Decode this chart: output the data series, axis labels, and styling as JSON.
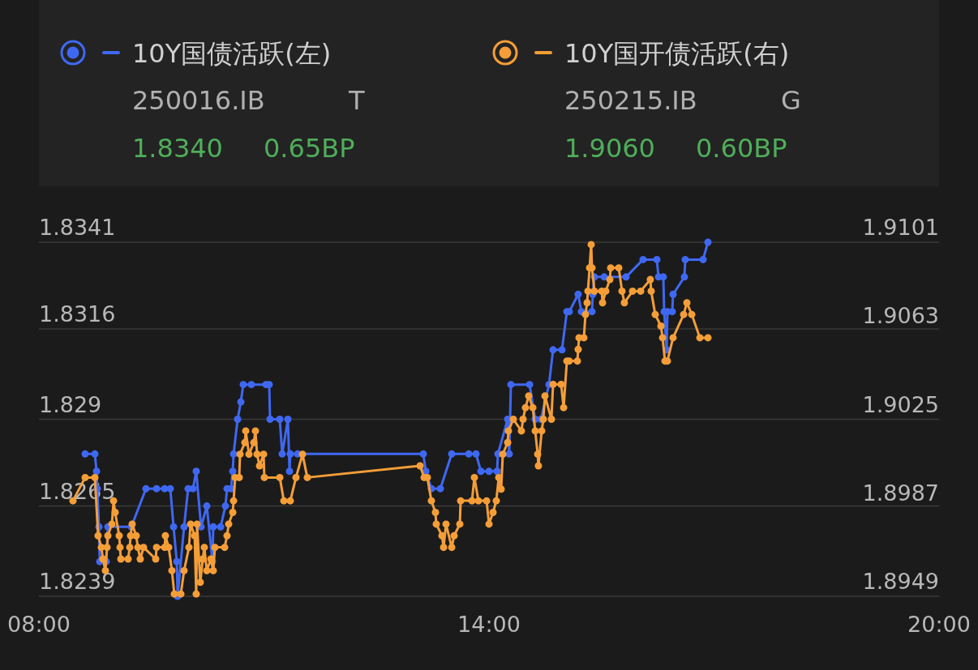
{
  "chart_data": {
    "type": "line",
    "xlim": [
      8,
      20
    ],
    "xticks": [
      {
        "value": 8,
        "label": "08:00"
      },
      {
        "value": 14,
        "label": "14:00"
      },
      {
        "value": 20,
        "label": "20:00"
      }
    ],
    "ylim": [
      1.8239,
      1.8341
    ],
    "yticks": [
      1.8239,
      1.8265,
      1.829,
      1.8316,
      1.8341
    ],
    "y2lim": [
      1.8949,
      1.9101
    ],
    "y2ticks": [
      1.8949,
      1.8987,
      1.9025,
      1.9063,
      1.9101
    ],
    "grid": "y",
    "legend": "top",
    "marker": "circle",
    "line_style": "solid",
    "annotations": [
      "250016.IB",
      "T",
      "1.8340",
      "0.65BP",
      "250215.IB",
      "G",
      "1.9060",
      "0.60BP"
    ],
    "series": [
      {
        "name": "10Y国债活跃(左)",
        "color": "#3f68f2",
        "axis": "y",
        "x": [
          8.616,
          8.746,
          8.768,
          8.778,
          8.8,
          8.811,
          8.897,
          8.919,
          9.232,
          9.427,
          9.568,
          9.676,
          9.751,
          9.795,
          9.838,
          9.849,
          9.935,
          9.989,
          10.054,
          10.097,
          10.162,
          10.238,
          10.314,
          10.324,
          10.422,
          10.486,
          10.508,
          10.562,
          10.584,
          10.595,
          10.649,
          10.692,
          10.724,
          10.832,
          11.027,
          11.07,
          11.081,
          11.211,
          11.243,
          11.319,
          11.341,
          11.351,
          11.449,
          13.124,
          13.157,
          13.232,
          13.351,
          13.503,
          13.73,
          13.827,
          13.892,
          14.0,
          14.108,
          14.119,
          14.249,
          14.27,
          14.292,
          14.541,
          14.616,
          14.692,
          14.8,
          14.854,
          14.973,
          15.038,
          15.07,
          15.189,
          15.232,
          15.373,
          15.384,
          15.405,
          15.535,
          15.827,
          16.054,
          16.238,
          16.259,
          16.324,
          16.335,
          16.368,
          16.378,
          16.443,
          16.454,
          16.605,
          16.616,
          16.854,
          16.919
        ],
        "values": [
          1.828,
          1.828,
          1.8275,
          1.827,
          1.8259,
          1.8249,
          1.8249,
          1.8259,
          1.8259,
          1.827,
          1.827,
          1.827,
          1.827,
          1.8259,
          1.8249,
          1.8239,
          1.8259,
          1.827,
          1.827,
          1.8275,
          1.8259,
          1.8265,
          1.8249,
          1.8259,
          1.8259,
          1.8265,
          1.827,
          1.827,
          1.8275,
          1.828,
          1.829,
          1.8295,
          1.83,
          1.83,
          1.83,
          1.83,
          1.829,
          1.829,
          1.828,
          1.829,
          1.8275,
          1.828,
          1.828,
          1.828,
          1.8275,
          1.827,
          1.827,
          1.828,
          1.828,
          1.828,
          1.8275,
          1.8275,
          1.8275,
          1.828,
          1.829,
          1.828,
          1.83,
          1.83,
          1.829,
          1.829,
          1.83,
          1.831,
          1.831,
          1.8321,
          1.8321,
          1.8326,
          1.8321,
          1.8321,
          1.8326,
          1.8331,
          1.8331,
          1.8331,
          1.8336,
          1.8336,
          1.8331,
          1.8331,
          1.8321,
          1.831,
          1.8321,
          1.8321,
          1.8326,
          1.8331,
          1.8336,
          1.8336,
          1.8341
        ]
      },
      {
        "name": "10Y国开债活跃(右)",
        "color": "#f59e38",
        "axis": "y2",
        "x": [
          8.454,
          8.616,
          8.746,
          8.789,
          8.832,
          8.854,
          8.886,
          8.908,
          8.919,
          8.973,
          8.995,
          9.016,
          9.07,
          9.081,
          9.092,
          9.189,
          9.211,
          9.222,
          9.243,
          9.297,
          9.319,
          9.351,
          9.395,
          9.557,
          9.568,
          9.676,
          9.686,
          9.73,
          9.773,
          9.805,
          9.892,
          9.935,
          10.0,
          10.022,
          10.076,
          10.097,
          10.108,
          10.151,
          10.184,
          10.205,
          10.238,
          10.292,
          10.324,
          10.346,
          10.476,
          10.508,
          10.53,
          10.584,
          10.595,
          10.616,
          10.67,
          10.681,
          10.746,
          10.757,
          10.8,
          10.865,
          10.886,
          10.908,
          10.941,
          10.995,
          11.005,
          11.211,
          11.265,
          11.351,
          11.427,
          11.514,
          11.578,
          13.081,
          13.135,
          13.178,
          13.232,
          13.286,
          13.297,
          13.373,
          13.395,
          13.427,
          13.503,
          13.535,
          13.611,
          13.622,
          13.773,
          13.805,
          13.859,
          13.968,
          14.0,
          14.054,
          14.097,
          14.13,
          14.162,
          14.184,
          14.249,
          14.259,
          14.324,
          14.432,
          14.454,
          14.486,
          14.53,
          14.584,
          14.616,
          14.649,
          14.659,
          14.703,
          14.724,
          14.746,
          14.832,
          14.854,
          14.962,
          14.995,
          15.038,
          15.07,
          15.178,
          15.189,
          15.2,
          15.265,
          15.286,
          15.308,
          15.319,
          15.341,
          15.362,
          15.373,
          15.405,
          15.503,
          15.514,
          15.557,
          15.611,
          15.622,
          15.73,
          15.773,
          15.805,
          15.914,
          16.022,
          16.151,
          16.162,
          16.216,
          16.292,
          16.314,
          16.346,
          16.378,
          16.454,
          16.595,
          16.638,
          16.703,
          16.811,
          16.919
        ],
        "values": [
          1.899,
          1.9,
          1.9,
          1.8975,
          1.897,
          1.8965,
          1.896,
          1.897,
          1.8975,
          1.898,
          1.899,
          1.8985,
          1.8975,
          1.897,
          1.8965,
          1.8965,
          1.897,
          1.8975,
          1.898,
          1.8975,
          1.897,
          1.8965,
          1.897,
          1.8965,
          1.897,
          1.897,
          1.8975,
          1.897,
          1.896,
          1.895,
          1.895,
          1.896,
          1.897,
          1.898,
          1.8975,
          1.895,
          1.898,
          1.8955,
          1.8965,
          1.897,
          1.896,
          1.8965,
          1.896,
          1.897,
          1.897,
          1.8975,
          1.898,
          1.8985,
          1.899,
          1.9,
          1.9,
          1.901,
          1.9015,
          1.902,
          1.901,
          1.9015,
          1.902,
          1.901,
          1.9005,
          1.901,
          1.9,
          1.9,
          1.899,
          1.899,
          1.9,
          1.901,
          1.9,
          1.9005,
          1.9,
          1.9,
          1.899,
          1.8985,
          1.898,
          1.8975,
          1.897,
          1.898,
          1.897,
          1.8975,
          1.898,
          1.899,
          1.899,
          1.9,
          1.899,
          1.899,
          1.898,
          1.8985,
          1.899,
          1.9,
          1.8995,
          1.901,
          1.9015,
          1.902,
          1.9025,
          1.902,
          1.9025,
          1.903,
          1.9035,
          1.903,
          1.902,
          1.901,
          1.9005,
          1.902,
          1.9025,
          1.9035,
          1.9025,
          1.904,
          1.904,
          1.903,
          1.905,
          1.905,
          1.905,
          1.9055,
          1.906,
          1.906,
          1.907,
          1.9075,
          1.908,
          1.909,
          1.91,
          1.909,
          1.908,
          1.908,
          1.9075,
          1.908,
          1.9085,
          1.909,
          1.909,
          1.908,
          1.9075,
          1.908,
          1.908,
          1.9085,
          1.908,
          1.907,
          1.9065,
          1.906,
          1.905,
          1.905,
          1.906,
          1.907,
          1.9075,
          1.907,
          1.906,
          1.906
        ]
      }
    ]
  }
}
